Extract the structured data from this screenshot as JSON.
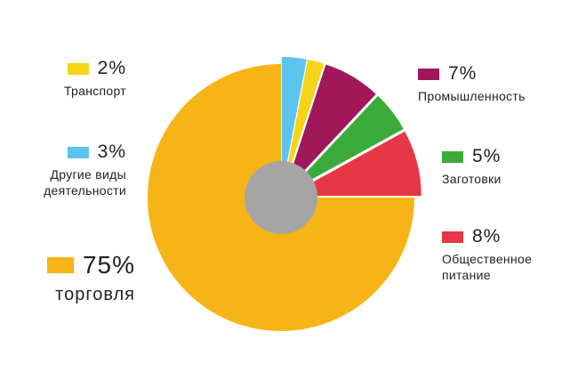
{
  "chart_data": {
    "type": "pie",
    "categories": [
      "Другие виды деятельности",
      "Транспорт",
      "Промышленность",
      "Заготовки",
      "Общественное питание",
      "торговля"
    ],
    "values": [
      3,
      2,
      7,
      5,
      8,
      75
    ],
    "value_labels": [
      "3%",
      "2%",
      "7%",
      "5%",
      "8%",
      "75%"
    ],
    "colors": [
      "#5bc5ef",
      "#f7d31a",
      "#a0175a",
      "#3aab3a",
      "#e63744",
      "#f7b416"
    ]
  }
}
